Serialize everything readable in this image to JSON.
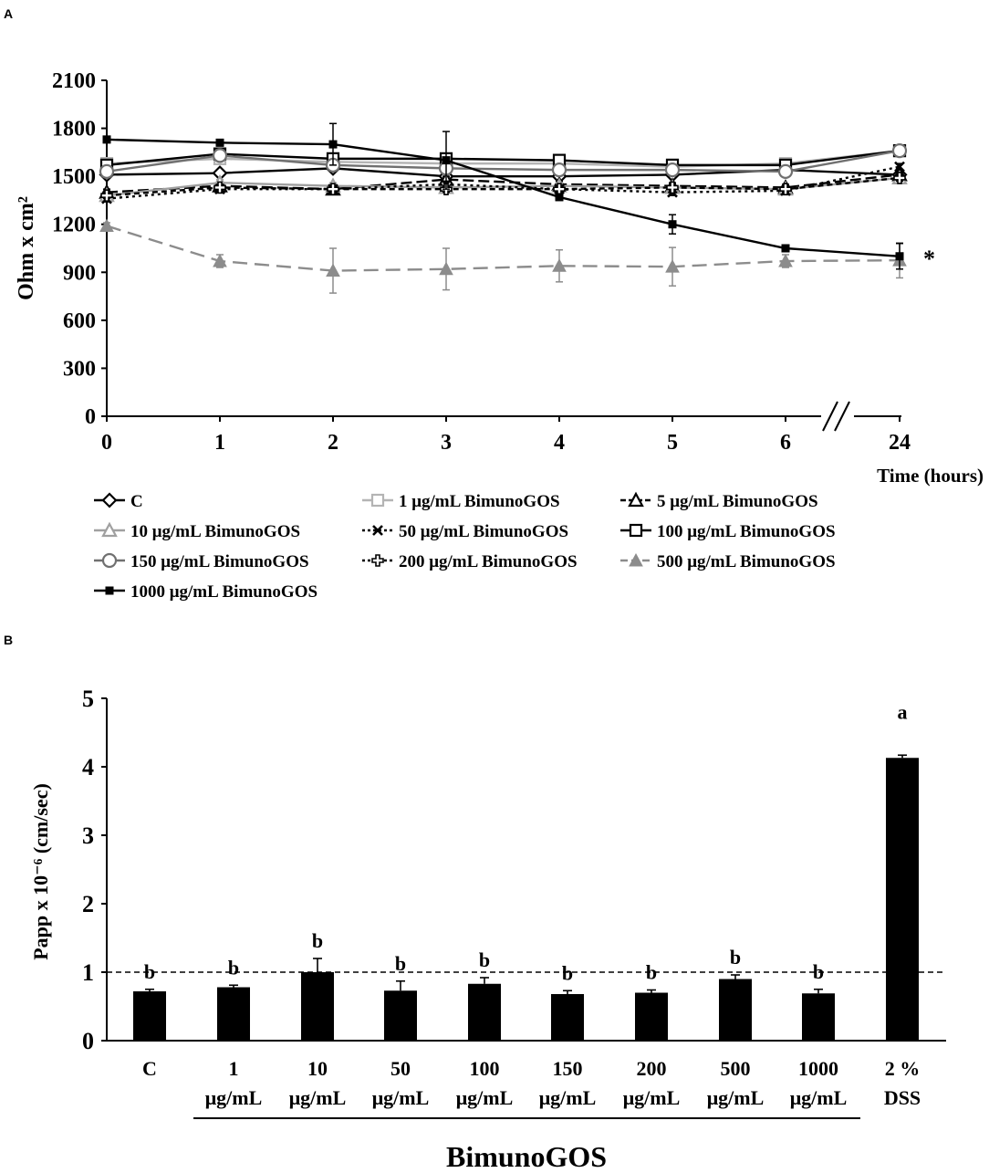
{
  "chart_data": [
    {
      "panel": "A",
      "type": "line",
      "ylabel": "Ohm x cm²",
      "xlabel": "Time (hours)",
      "x_ticks": [
        "0",
        "1",
        "2",
        "3",
        "4",
        "5",
        "6",
        "24"
      ],
      "ylim": [
        0,
        2100
      ],
      "y_ticks": [
        "0",
        "300",
        "600",
        "900",
        "1200",
        "1500",
        "1800",
        "2100"
      ],
      "annotation": "*",
      "series": [
        {
          "name": "C",
          "color": "#000000",
          "dash": "",
          "marker": "diamond-open",
          "values": [
            1510,
            1520,
            1550,
            1500,
            1500,
            1510,
            1540,
            1510
          ],
          "errors": [
            20,
            20,
            20,
            20,
            20,
            20,
            20,
            20
          ]
        },
        {
          "name": "1 μg/mL BimunoGOS",
          "color": "#b4b4b4",
          "dash": "",
          "marker": "square-open",
          "values": [
            1580,
            1610,
            1590,
            1580,
            1580,
            1560,
            1580,
            1660
          ],
          "errors": [
            20,
            20,
            20,
            20,
            20,
            20,
            20,
            20
          ]
        },
        {
          "name": "5 μg/mL BimunoGOS",
          "color": "#000000",
          "dash": "12 5",
          "marker": "triangle-open",
          "values": [
            1400,
            1440,
            1420,
            1480,
            1450,
            1440,
            1430,
            1510
          ],
          "errors": [
            20,
            20,
            20,
            20,
            20,
            20,
            20,
            20
          ]
        },
        {
          "name": "10 μg/mL BimunoGOS",
          "color": "#a0a0a0",
          "dash": "",
          "marker": "triangle-open",
          "values": [
            1380,
            1460,
            1440,
            1430,
            1440,
            1430,
            1420,
            1490
          ],
          "errors": [
            20,
            20,
            20,
            20,
            20,
            20,
            20,
            20
          ]
        },
        {
          "name": "50 μg/mL BimunoGOS",
          "color": "#000000",
          "dash": "3 4",
          "marker": "x",
          "values": [
            1360,
            1420,
            1420,
            1450,
            1420,
            1400,
            1410,
            1560
          ],
          "errors": [
            20,
            20,
            20,
            20,
            20,
            20,
            20,
            20
          ]
        },
        {
          "name": "100 μg/mL BimunoGOS",
          "color": "#000000",
          "dash": "",
          "marker": "square-open",
          "values": [
            1570,
            1640,
            1610,
            1610,
            1600,
            1570,
            1570,
            1660
          ],
          "errors": [
            20,
            20,
            20,
            20,
            20,
            20,
            20,
            20
          ]
        },
        {
          "name": "150 μg/mL BimunoGOS",
          "color": "#707070",
          "dash": "",
          "marker": "circle-open",
          "values": [
            1530,
            1630,
            1570,
            1550,
            1540,
            1540,
            1530,
            1660
          ],
          "errors": [
            20,
            20,
            20,
            20,
            20,
            20,
            20,
            20
          ]
        },
        {
          "name": "200 μg/mL BimunoGOS",
          "color": "#000000",
          "dash": "6 4",
          "marker": "cross-open",
          "values": [
            1380,
            1430,
            1420,
            1420,
            1420,
            1430,
            1420,
            1490
          ],
          "errors": [
            20,
            20,
            20,
            20,
            20,
            20,
            20,
            20
          ]
        },
        {
          "name": "500 μg/mL BimunoGOS",
          "color": "#8c8c8c",
          "dash": "16 8",
          "marker": "triangle-filled",
          "values": [
            1190,
            970,
            910,
            920,
            940,
            935,
            970,
            975
          ],
          "errors": [
            20,
            40,
            140,
            130,
            100,
            120,
            40,
            110
          ]
        },
        {
          "name": "1000 μg/mL BimunoGOS",
          "color": "#000000",
          "dash": "",
          "marker": "square-filled",
          "values": [
            1730,
            1710,
            1700,
            1600,
            1370,
            1200,
            1050,
            1000
          ],
          "errors": [
            20,
            20,
            130,
            180,
            20,
            60,
            20,
            80
          ]
        }
      ]
    },
    {
      "panel": "B",
      "type": "bar",
      "ylabel": "Papp x 10⁻⁶ (cm/sec)",
      "ylim": [
        0,
        5
      ],
      "y_ticks": [
        "0",
        "1",
        "2",
        "3",
        "4",
        "5"
      ],
      "reference_line": 1,
      "categories": [
        {
          "top": "C",
          "bottom": ""
        },
        {
          "top": "1",
          "bottom": "μg/mL"
        },
        {
          "top": "10",
          "bottom": "μg/mL"
        },
        {
          "top": "50",
          "bottom": "μg/mL"
        },
        {
          "top": "100",
          "bottom": "μg/mL"
        },
        {
          "top": "150",
          "bottom": "μg/mL"
        },
        {
          "top": "200",
          "bottom": "μg/mL"
        },
        {
          "top": "500",
          "bottom": "μg/mL"
        },
        {
          "top": "1000",
          "bottom": "μg/mL"
        },
        {
          "top": "2 %",
          "bottom": "DSS"
        }
      ],
      "values": [
        0.72,
        0.78,
        1.0,
        0.73,
        0.83,
        0.68,
        0.7,
        0.9,
        0.69,
        4.13
      ],
      "errors": [
        0.03,
        0.03,
        0.2,
        0.14,
        0.09,
        0.05,
        0.04,
        0.06,
        0.06,
        0.04
      ],
      "significance": [
        "b",
        "b",
        "b",
        "b",
        "b",
        "b",
        "b",
        "b",
        "b",
        "a"
      ],
      "group_label": "BimunoGOS"
    }
  ],
  "labels": {
    "panel_a": "A",
    "panel_b": "B",
    "break_mark": "//"
  }
}
